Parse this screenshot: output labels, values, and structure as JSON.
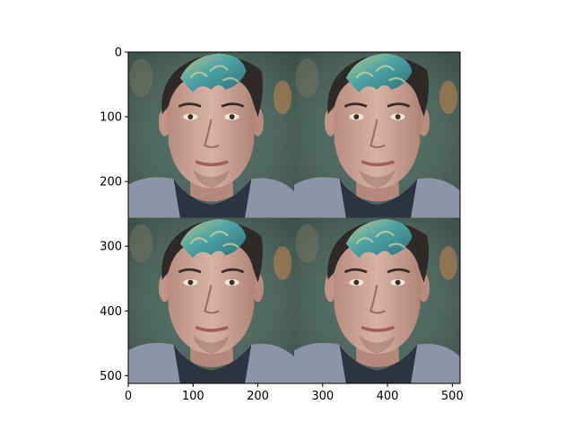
{
  "chart_data": {
    "type": "image",
    "title": "",
    "xlabel": "",
    "ylabel": "",
    "xlim": [
      0,
      512
    ],
    "ylim": [
      512,
      0
    ],
    "x_ticks": [
      0,
      100,
      200,
      300,
      400,
      500
    ],
    "y_ticks": [
      0,
      100,
      200,
      300,
      400,
      500
    ],
    "grid": false,
    "legend": "none",
    "image": {
      "layout": "2x2 grid of identical portrait photographs",
      "rows": 2,
      "cols": 2,
      "tile_size": 256,
      "subject": "young man with dark hair and teal-dyed curly fringe, grey hoodie, blurred green background"
    }
  },
  "colors": {
    "background": "#ffffff",
    "axis": "#000000",
    "photo_background": "#4f6a62",
    "skin": "#c9a393",
    "hair_dark": "#2f2a28",
    "hair_teal": "#3f8e92",
    "hoodie": "#8c95a8"
  }
}
